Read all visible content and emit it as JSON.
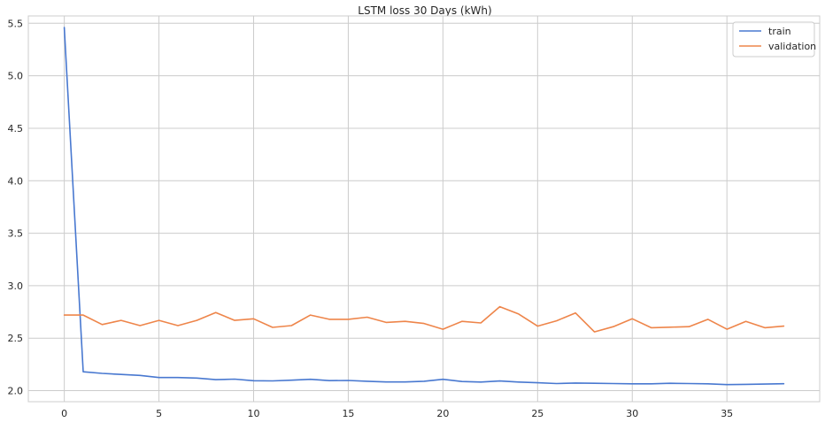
{
  "chart_data": {
    "type": "line",
    "title": "LSTM loss 30 Days (kWh)",
    "xlabel": "",
    "ylabel": "",
    "xlim": [
      -1.9,
      39.9
    ],
    "ylim": [
      1.895,
      5.57
    ],
    "xticks": [
      0,
      5,
      10,
      15,
      20,
      25,
      30,
      35
    ],
    "yticks": [
      2.0,
      2.5,
      3.0,
      3.5,
      4.0,
      4.5,
      5.0,
      5.5
    ],
    "ytick_labels": [
      "2.0",
      "2.5",
      "3.0",
      "3.5",
      "4.0",
      "4.5",
      "5.0",
      "5.5"
    ],
    "grid": true,
    "legend_position": "top-right",
    "series": [
      {
        "name": "train",
        "color": "#4878d0",
        "x": [
          0,
          1,
          2,
          3,
          4,
          5,
          6,
          7,
          8,
          9,
          10,
          11,
          12,
          13,
          14,
          15,
          16,
          17,
          18,
          19,
          20,
          21,
          22,
          23,
          24,
          25,
          26,
          27,
          28,
          29,
          30,
          31,
          32,
          33,
          34,
          35,
          36,
          37,
          38
        ],
        "values": [
          5.46,
          2.18,
          2.165,
          2.155,
          2.145,
          2.125,
          2.125,
          2.12,
          2.105,
          2.11,
          2.095,
          2.093,
          2.1,
          2.108,
          2.096,
          2.097,
          2.09,
          2.083,
          2.083,
          2.09,
          2.108,
          2.087,
          2.082,
          2.092,
          2.082,
          2.075,
          2.068,
          2.073,
          2.07,
          2.068,
          2.065,
          2.065,
          2.07,
          2.068,
          2.065,
          2.058,
          2.06,
          2.063,
          2.066
        ]
      },
      {
        "name": "validation",
        "color": "#ee854a",
        "x": [
          0,
          1,
          2,
          3,
          4,
          5,
          6,
          7,
          8,
          9,
          10,
          11,
          12,
          13,
          14,
          15,
          16,
          17,
          18,
          19,
          20,
          21,
          22,
          23,
          24,
          25,
          26,
          27,
          28,
          29,
          30,
          31,
          32,
          33,
          34,
          35,
          36,
          37,
          38
        ],
        "values": [
          2.72,
          2.72,
          2.63,
          2.67,
          2.62,
          2.67,
          2.62,
          2.67,
          2.745,
          2.67,
          2.685,
          2.603,
          2.62,
          2.72,
          2.68,
          2.68,
          2.7,
          2.65,
          2.66,
          2.64,
          2.585,
          2.66,
          2.645,
          2.8,
          2.73,
          2.615,
          2.665,
          2.74,
          2.56,
          2.61,
          2.685,
          2.6,
          2.605,
          2.61,
          2.68,
          2.585,
          2.66,
          2.6,
          2.615
        ]
      }
    ]
  }
}
